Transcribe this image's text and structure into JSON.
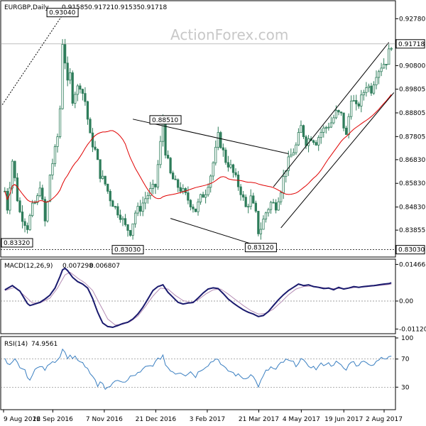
{
  "watermark": "ActionForex.com",
  "colors": {
    "candle": "#2e7d5b",
    "sma": "#e00000",
    "channel": "#000000",
    "macd": "#1a1a6e",
    "signal": "#b48cb4",
    "rsi": "#3a7fc1",
    "grid": "#808080",
    "frame": "#000000"
  },
  "chart_data": [
    {
      "type": "candlestick",
      "title": "EURGBP,Daily",
      "ohlc_header": [
        "0.91585",
        "0.91721",
        "0.91535",
        "0.91718"
      ],
      "y_tick_labels": [
        "0.92780",
        "0.90800",
        "0.89805",
        "0.88805",
        "0.87805",
        "0.86830",
        "0.85830",
        "0.84830",
        "0.83855"
      ],
      "y_ticks": [
        0.9278,
        0.908,
        0.89805,
        0.88805,
        0.87805,
        0.8683,
        0.8583,
        0.8483,
        0.83855
      ],
      "ylim": [
        0.8278,
        0.9348
      ],
      "current_price_label": "0.91718",
      "current_price": 0.91718,
      "support_label": "0.83030",
      "support": 0.8303,
      "annotations": [
        {
          "text": "0.93040",
          "x": 23,
          "y": 0.9304
        },
        {
          "text": "0.83320",
          "x": 0,
          "y": 0.8332
        },
        {
          "text": "0.83030",
          "x": 49,
          "y": 0.8303
        },
        {
          "text": "0.88510",
          "x": 64,
          "y": 0.8851
        },
        {
          "text": "0.83120",
          "x": 102,
          "y": 0.8312
        }
      ],
      "trendlines": [
        {
          "x1": 51,
          "y1": 0.8854,
          "x2": 113,
          "y2": 0.8708
        },
        {
          "x1": 66,
          "y1": 0.8435,
          "x2": 108,
          "y2": 0.8295
        },
        {
          "x1": 107,
          "y1": 0.8568,
          "x2": 153,
          "y2": 0.9178
        },
        {
          "x1": 110,
          "y1": 0.8395,
          "x2": 155,
          "y2": 0.8966
        },
        {
          "x1": -1,
          "y1": 0.8915,
          "x2": 24,
          "y2": 0.931
        }
      ],
      "close_keypoints": [
        [
          0,
          0.855
        ],
        [
          1,
          0.848
        ],
        [
          3,
          0.868
        ],
        [
          5,
          0.852
        ],
        [
          6,
          0.846
        ],
        [
          9,
          0.84
        ],
        [
          11,
          0.848
        ],
        [
          13,
          0.852
        ],
        [
          14,
          0.858
        ],
        [
          16,
          0.842
        ],
        [
          17,
          0.85
        ],
        [
          18,
          0.862
        ],
        [
          20,
          0.872
        ],
        [
          21,
          0.878
        ],
        [
          22,
          0.89
        ],
        [
          23,
          0.918
        ],
        [
          24,
          0.91
        ],
        [
          25,
          0.9
        ],
        [
          26,
          0.904
        ],
        [
          27,
          0.894
        ],
        [
          28,
          0.897
        ],
        [
          30,
          0.9
        ],
        [
          32,
          0.893
        ],
        [
          34,
          0.878
        ],
        [
          36,
          0.872
        ],
        [
          38,
          0.862
        ],
        [
          40,
          0.858
        ],
        [
          42,
          0.852
        ],
        [
          44,
          0.848
        ],
        [
          46,
          0.845
        ],
        [
          48,
          0.84
        ],
        [
          50,
          0.838
        ],
        [
          52,
          0.846
        ],
        [
          54,
          0.848
        ],
        [
          56,
          0.852
        ],
        [
          58,
          0.855
        ],
        [
          60,
          0.857
        ],
        [
          62,
          0.875
        ],
        [
          63,
          0.885
        ],
        [
          64,
          0.872
        ],
        [
          66,
          0.862
        ],
        [
          68,
          0.858
        ],
        [
          70,
          0.856
        ],
        [
          72,
          0.853
        ],
        [
          74,
          0.85
        ],
        [
          76,
          0.847
        ],
        [
          78,
          0.852
        ],
        [
          80,
          0.855
        ],
        [
          82,
          0.862
        ],
        [
          84,
          0.872
        ],
        [
          85,
          0.878
        ],
        [
          86,
          0.875
        ],
        [
          88,
          0.868
        ],
        [
          90,
          0.865
        ],
        [
          92,
          0.86
        ],
        [
          94,
          0.855
        ],
        [
          96,
          0.848
        ],
        [
          98,
          0.852
        ],
        [
          100,
          0.845
        ],
        [
          101,
          0.838
        ],
        [
          102,
          0.8395
        ],
        [
          104,
          0.846
        ],
        [
          106,
          0.85
        ],
        [
          108,
          0.849
        ],
        [
          110,
          0.856
        ],
        [
          112,
          0.865
        ],
        [
          114,
          0.87
        ],
        [
          116,
          0.874
        ],
        [
          118,
          0.882
        ],
        [
          120,
          0.876
        ],
        [
          122,
          0.878
        ],
        [
          124,
          0.876
        ],
        [
          126,
          0.88
        ],
        [
          128,
          0.882
        ],
        [
          130,
          0.884
        ],
        [
          132,
          0.888
        ],
        [
          134,
          0.887
        ],
        [
          136,
          0.878
        ],
        [
          138,
          0.895
        ],
        [
          140,
          0.89
        ],
        [
          142,
          0.894
        ],
        [
          144,
          0.9
        ],
        [
          146,
          0.898
        ],
        [
          148,
          0.905
        ],
        [
          150,
          0.908
        ],
        [
          152,
          0.91
        ],
        [
          154,
          0.9172
        ]
      ]
    },
    {
      "type": "line",
      "title": "MACD(12,26,9)",
      "values_header": [
        "0.007298",
        "0.006807"
      ],
      "y_tick_labels": [
        "0.014661",
        "0.00",
        "-0.011202"
      ],
      "y_ticks": [
        0.014661,
        0,
        -0.011202
      ],
      "ylim": [
        -0.0125,
        0.0162
      ],
      "macd_keypoints": [
        [
          0,
          0.0045
        ],
        [
          3,
          0.0062
        ],
        [
          6,
          0.004
        ],
        [
          9,
          -0.001
        ],
        [
          10,
          -0.0018
        ],
        [
          12,
          -0.0012
        ],
        [
          14,
          -0.0005
        ],
        [
          16,
          0.0008
        ],
        [
          18,
          0.0024
        ],
        [
          20,
          0.0052
        ],
        [
          22,
          0.0098
        ],
        [
          23,
          0.0125
        ],
        [
          24,
          0.0131
        ],
        [
          25,
          0.0122
        ],
        [
          27,
          0.0095
        ],
        [
          29,
          0.0078
        ],
        [
          31,
          0.0068
        ],
        [
          33,
          0.0052
        ],
        [
          35,
          0.001
        ],
        [
          37,
          -0.0045
        ],
        [
          39,
          -0.0088
        ],
        [
          41,
          -0.0102
        ],
        [
          43,
          -0.0105
        ],
        [
          45,
          -0.0098
        ],
        [
          47,
          -0.009
        ],
        [
          49,
          -0.0085
        ],
        [
          51,
          -0.0072
        ],
        [
          53,
          -0.0052
        ],
        [
          55,
          -0.0025
        ],
        [
          57,
          0.0008
        ],
        [
          59,
          0.0042
        ],
        [
          61,
          0.0058
        ],
        [
          63,
          0.0065
        ],
        [
          65,
          0.0035
        ],
        [
          67,
          0.0015
        ],
        [
          69,
          -0.0005
        ],
        [
          71,
          -0.0012
        ],
        [
          73,
          -0.0008
        ],
        [
          75,
          -0.0006
        ],
        [
          77,
          0.0012
        ],
        [
          79,
          0.0032
        ],
        [
          81,
          0.0048
        ],
        [
          83,
          0.0053
        ],
        [
          85,
          0.005
        ],
        [
          87,
          0.003
        ],
        [
          89,
          0.0008
        ],
        [
          91,
          -0.0008
        ],
        [
          93,
          -0.0022
        ],
        [
          95,
          -0.0035
        ],
        [
          97,
          -0.0045
        ],
        [
          99,
          -0.0052
        ],
        [
          101,
          -0.0062
        ],
        [
          103,
          -0.0058
        ],
        [
          105,
          -0.0042
        ],
        [
          107,
          -0.0018
        ],
        [
          109,
          0.0005
        ],
        [
          111,
          0.0025
        ],
        [
          113,
          0.0042
        ],
        [
          115,
          0.0055
        ],
        [
          117,
          0.0068
        ],
        [
          119,
          0.0062
        ],
        [
          121,
          0.0065
        ],
        [
          123,
          0.0058
        ],
        [
          125,
          0.0055
        ],
        [
          127,
          0.005
        ],
        [
          129,
          0.0052
        ],
        [
          131,
          0.0045
        ],
        [
          133,
          0.0055
        ],
        [
          135,
          0.0048
        ],
        [
          137,
          0.0052
        ],
        [
          139,
          0.0058
        ],
        [
          141,
          0.0055
        ],
        [
          143,
          0.0058
        ],
        [
          145,
          0.006
        ],
        [
          147,
          0.0062
        ],
        [
          149,
          0.0065
        ],
        [
          151,
          0.0068
        ],
        [
          153,
          0.007
        ],
        [
          154,
          0.0073
        ]
      ],
      "signal_keypoints": [
        [
          0,
          0.0042
        ],
        [
          4,
          0.0055
        ],
        [
          8,
          0.002
        ],
        [
          11,
          -0.0008
        ],
        [
          14,
          -0.0008
        ],
        [
          18,
          0.0012
        ],
        [
          21,
          0.0052
        ],
        [
          24,
          0.0105
        ],
        [
          26,
          0.0115
        ],
        [
          29,
          0.0092
        ],
        [
          32,
          0.0072
        ],
        [
          35,
          0.0042
        ],
        [
          38,
          -0.0015
        ],
        [
          41,
          -0.0072
        ],
        [
          44,
          -0.0096
        ],
        [
          47,
          -0.0093
        ],
        [
          50,
          -0.0082
        ],
        [
          53,
          -0.006
        ],
        [
          56,
          -0.0022
        ],
        [
          59,
          0.002
        ],
        [
          62,
          0.0052
        ],
        [
          65,
          0.0048
        ],
        [
          68,
          0.0022
        ],
        [
          71,
          0.0002
        ],
        [
          74,
          -0.0006
        ],
        [
          77,
          0.0005
        ],
        [
          80,
          0.0028
        ],
        [
          83,
          0.0045
        ],
        [
          86,
          0.0048
        ],
        [
          89,
          0.0028
        ],
        [
          92,
          0.0005
        ],
        [
          95,
          -0.0018
        ],
        [
          98,
          -0.0038
        ],
        [
          101,
          -0.0052
        ],
        [
          104,
          -0.005
        ],
        [
          107,
          -0.0032
        ],
        [
          110,
          -0.0005
        ],
        [
          113,
          0.0025
        ],
        [
          116,
          0.0048
        ],
        [
          119,
          0.0058
        ],
        [
          122,
          0.006
        ],
        [
          125,
          0.0056
        ],
        [
          128,
          0.0052
        ],
        [
          131,
          0.005
        ],
        [
          134,
          0.005
        ],
        [
          137,
          0.0051
        ],
        [
          140,
          0.0055
        ],
        [
          143,
          0.0056
        ],
        [
          146,
          0.0059
        ],
        [
          149,
          0.0062
        ],
        [
          152,
          0.0065
        ],
        [
          154,
          0.0068
        ]
      ]
    },
    {
      "type": "line",
      "title": "RSI(14)",
      "value_header": "74.9561",
      "y_tick_labels": [
        "100",
        "70",
        "30",
        "0"
      ],
      "y_ticks": [
        100,
        70,
        30,
        0
      ],
      "ylim": [
        0,
        100
      ],
      "rsi_keypoints": [
        [
          0,
          68
        ],
        [
          2,
          65
        ],
        [
          4,
          70
        ],
        [
          6,
          60
        ],
        [
          8,
          55
        ],
        [
          9,
          46
        ],
        [
          10,
          40
        ],
        [
          11,
          50
        ],
        [
          12,
          55
        ],
        [
          14,
          58
        ],
        [
          16,
          55
        ],
        [
          18,
          62
        ],
        [
          20,
          68
        ],
        [
          22,
          74
        ],
        [
          23,
          84
        ],
        [
          24,
          78
        ],
        [
          25,
          70
        ],
        [
          26,
          74
        ],
        [
          27,
          68
        ],
        [
          28,
          72
        ],
        [
          30,
          68
        ],
        [
          32,
          60
        ],
        [
          34,
          50
        ],
        [
          36,
          42
        ],
        [
          37,
          32
        ],
        [
          38,
          35
        ],
        [
          40,
          30
        ],
        [
          42,
          32
        ],
        [
          44,
          36
        ],
        [
          46,
          40
        ],
        [
          48,
          36
        ],
        [
          50,
          44
        ],
        [
          52,
          48
        ],
        [
          54,
          50
        ],
        [
          56,
          58
        ],
        [
          58,
          60
        ],
        [
          60,
          65
        ],
        [
          62,
          72
        ],
        [
          63,
          76
        ],
        [
          64,
          62
        ],
        [
          66,
          55
        ],
        [
          68,
          50
        ],
        [
          70,
          52
        ],
        [
          72,
          48
        ],
        [
          74,
          52
        ],
        [
          76,
          46
        ],
        [
          78,
          55
        ],
        [
          80,
          60
        ],
        [
          82,
          65
        ],
        [
          84,
          70
        ],
        [
          85,
          72
        ],
        [
          86,
          62
        ],
        [
          88,
          55
        ],
        [
          90,
          52
        ],
        [
          92,
          48
        ],
        [
          94,
          45
        ],
        [
          96,
          42
        ],
        [
          98,
          50
        ],
        [
          100,
          38
        ],
        [
          101,
          32
        ],
        [
          102,
          38
        ],
        [
          104,
          52
        ],
        [
          106,
          58
        ],
        [
          108,
          54
        ],
        [
          110,
          64
        ],
        [
          112,
          68
        ],
        [
          114,
          66
        ],
        [
          116,
          62
        ],
        [
          118,
          70
        ],
        [
          120,
          62
        ],
        [
          122,
          60
        ],
        [
          124,
          56
        ],
        [
          126,
          62
        ],
        [
          128,
          64
        ],
        [
          130,
          62
        ],
        [
          132,
          65
        ],
        [
          134,
          60
        ],
        [
          136,
          54
        ],
        [
          138,
          68
        ],
        [
          140,
          62
        ],
        [
          142,
          64
        ],
        [
          144,
          68
        ],
        [
          146,
          60
        ],
        [
          148,
          68
        ],
        [
          150,
          70
        ],
        [
          152,
          70
        ],
        [
          153,
          72
        ],
        [
          154,
          75
        ]
      ]
    }
  ],
  "x_axis": {
    "labels": [
      "9 Aug 2016",
      "22 Sep 2016",
      "7 Nov 2016",
      "21 Dec 2016",
      "3 Feb 2017",
      "21 Mar 2017",
      "4 May 2017",
      "19 Jun 2017",
      "2 Aug 2017"
    ],
    "bar_index": [
      0,
      22,
      45,
      68,
      91,
      114,
      133,
      152,
      170
    ]
  }
}
